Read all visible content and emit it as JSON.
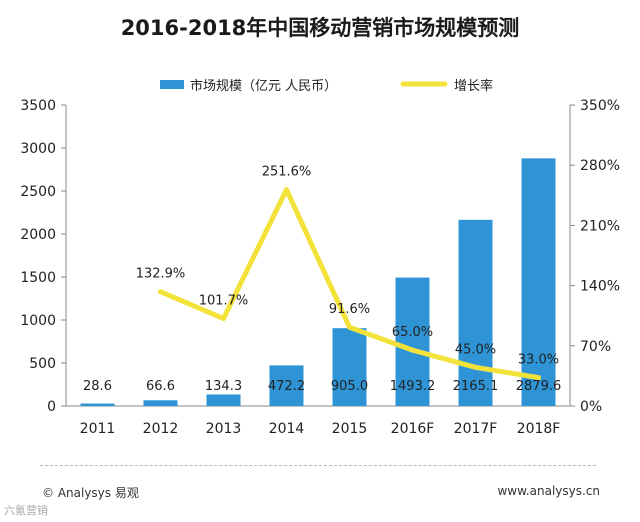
{
  "title": "2016-2018年中国移动营销市场规模预测",
  "footer": {
    "left": "© Analysys 易观",
    "right": "www.analysys.cn",
    "watermark": "六氪营销"
  },
  "chart_data": {
    "type": "bar",
    "categories": [
      "2011",
      "2012",
      "2013",
      "2014",
      "2015",
      "2016F",
      "2017F",
      "2018F"
    ],
    "series": [
      {
        "name": "市场规模（亿元 人民币）",
        "type": "bar",
        "axis": "left",
        "color": "#2e94d6",
        "values": [
          28.6,
          66.6,
          134.3,
          472.2,
          905.0,
          1493.2,
          2165.1,
          2879.6
        ],
        "labels": [
          "28.6",
          "66.6",
          "134.3",
          "472.2",
          "905.0",
          "1493.2",
          "2165.1",
          "2879.6"
        ]
      },
      {
        "name": "增长率",
        "type": "line",
        "axis": "right",
        "color": "#f2e23a",
        "values": [
          null,
          132.9,
          101.7,
          251.6,
          91.6,
          65.0,
          45.0,
          33.0
        ],
        "labels": [
          "",
          "132.9%",
          "101.7%",
          "251.6%",
          "91.6%",
          "65.0%",
          "45.0%",
          "33.0%"
        ]
      }
    ],
    "ylim_left": [
      0,
      3500
    ],
    "yticks_left": [
      "0",
      "500",
      "1000",
      "1500",
      "2000",
      "2500",
      "3000",
      "3500"
    ],
    "ylim_right": [
      0,
      350
    ],
    "yticks_right": [
      "0%",
      "70%",
      "140%",
      "210%",
      "280%",
      "350%"
    ],
    "grid": false,
    "legend_position": "top"
  }
}
